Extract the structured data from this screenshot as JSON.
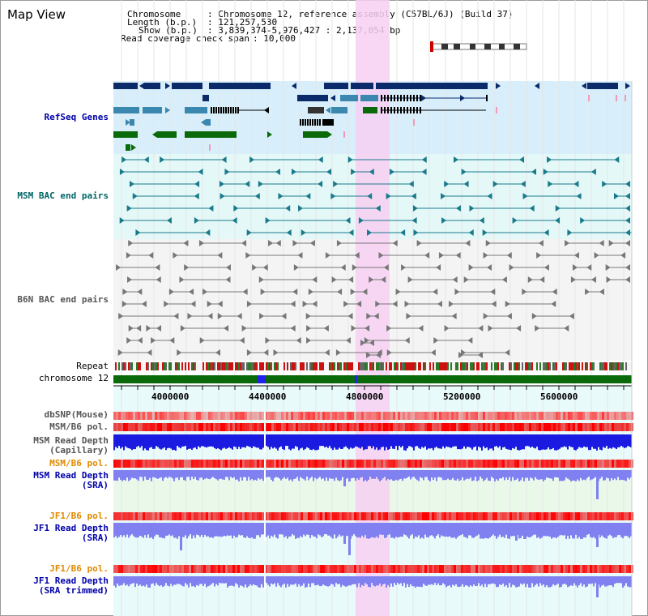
{
  "page": {
    "title": "Map View"
  },
  "info": {
    "chromosome_key": "Chromosome",
    "chromosome_val": ": Chromosome 12, reference assembly (C57BL/6J) (Build 37)",
    "length_key": "Length (b.p.)",
    "length_val": ": 121,257,530",
    "show_key": "Show (b.p.)",
    "show_val": ": 3,839,374-5,976,427 : 2,137,054 bp",
    "coverage_key": "Read coverage check span",
    "coverage_val": ": 10,000"
  },
  "tracks": {
    "refseq": "RefSeq Genes",
    "msm_bac": "MSM BAC end pairs",
    "b6n_bac": "B6N BAC end pairs",
    "repeat": "Repeat",
    "chromosome": "chromosome 12",
    "dbsnp": "dbSNP(Mouse)",
    "msm_b6_pol": "MSM/B6 pol.",
    "msm_depth_cap_1": "MSM Read Depth",
    "msm_depth_cap_2": "(Capillary)",
    "msm_b6_pol_2": "MSM/B6 pol.",
    "msm_depth_sra_1": "MSM Read Depth",
    "msm_depth_sra_2": "(SRA)",
    "jf1_b6_pol": "JF1/B6 pol.",
    "jf1_depth_sra_1": "JF1 Read Depth",
    "jf1_depth_sra_2": "(SRA)",
    "jf1_b6_pol_2": "JF1/B6 pol.",
    "jf1_depth_trim_1": "JF1 Read Depth",
    "jf1_depth_trim_2": "(SRA trimmed)"
  },
  "axis": {
    "ticks": [
      "4000000",
      "4400000",
      "4800000",
      "5200000",
      "5600000"
    ]
  },
  "colors": {
    "refseq_bg": "#d8eefa",
    "bac_bg": "#e4f8f8",
    "b6n_bg": "#f4f4f4",
    "highlight": "#f7d0f2",
    "gene_dark": "#0a2a6a",
    "gene_mid": "#3a88b0",
    "gene_green": "#0a6a0a",
    "chrom_green": "#0a6a0a",
    "depth_blue": "#1a1ae0",
    "depth_light": "#8080f0"
  }
}
